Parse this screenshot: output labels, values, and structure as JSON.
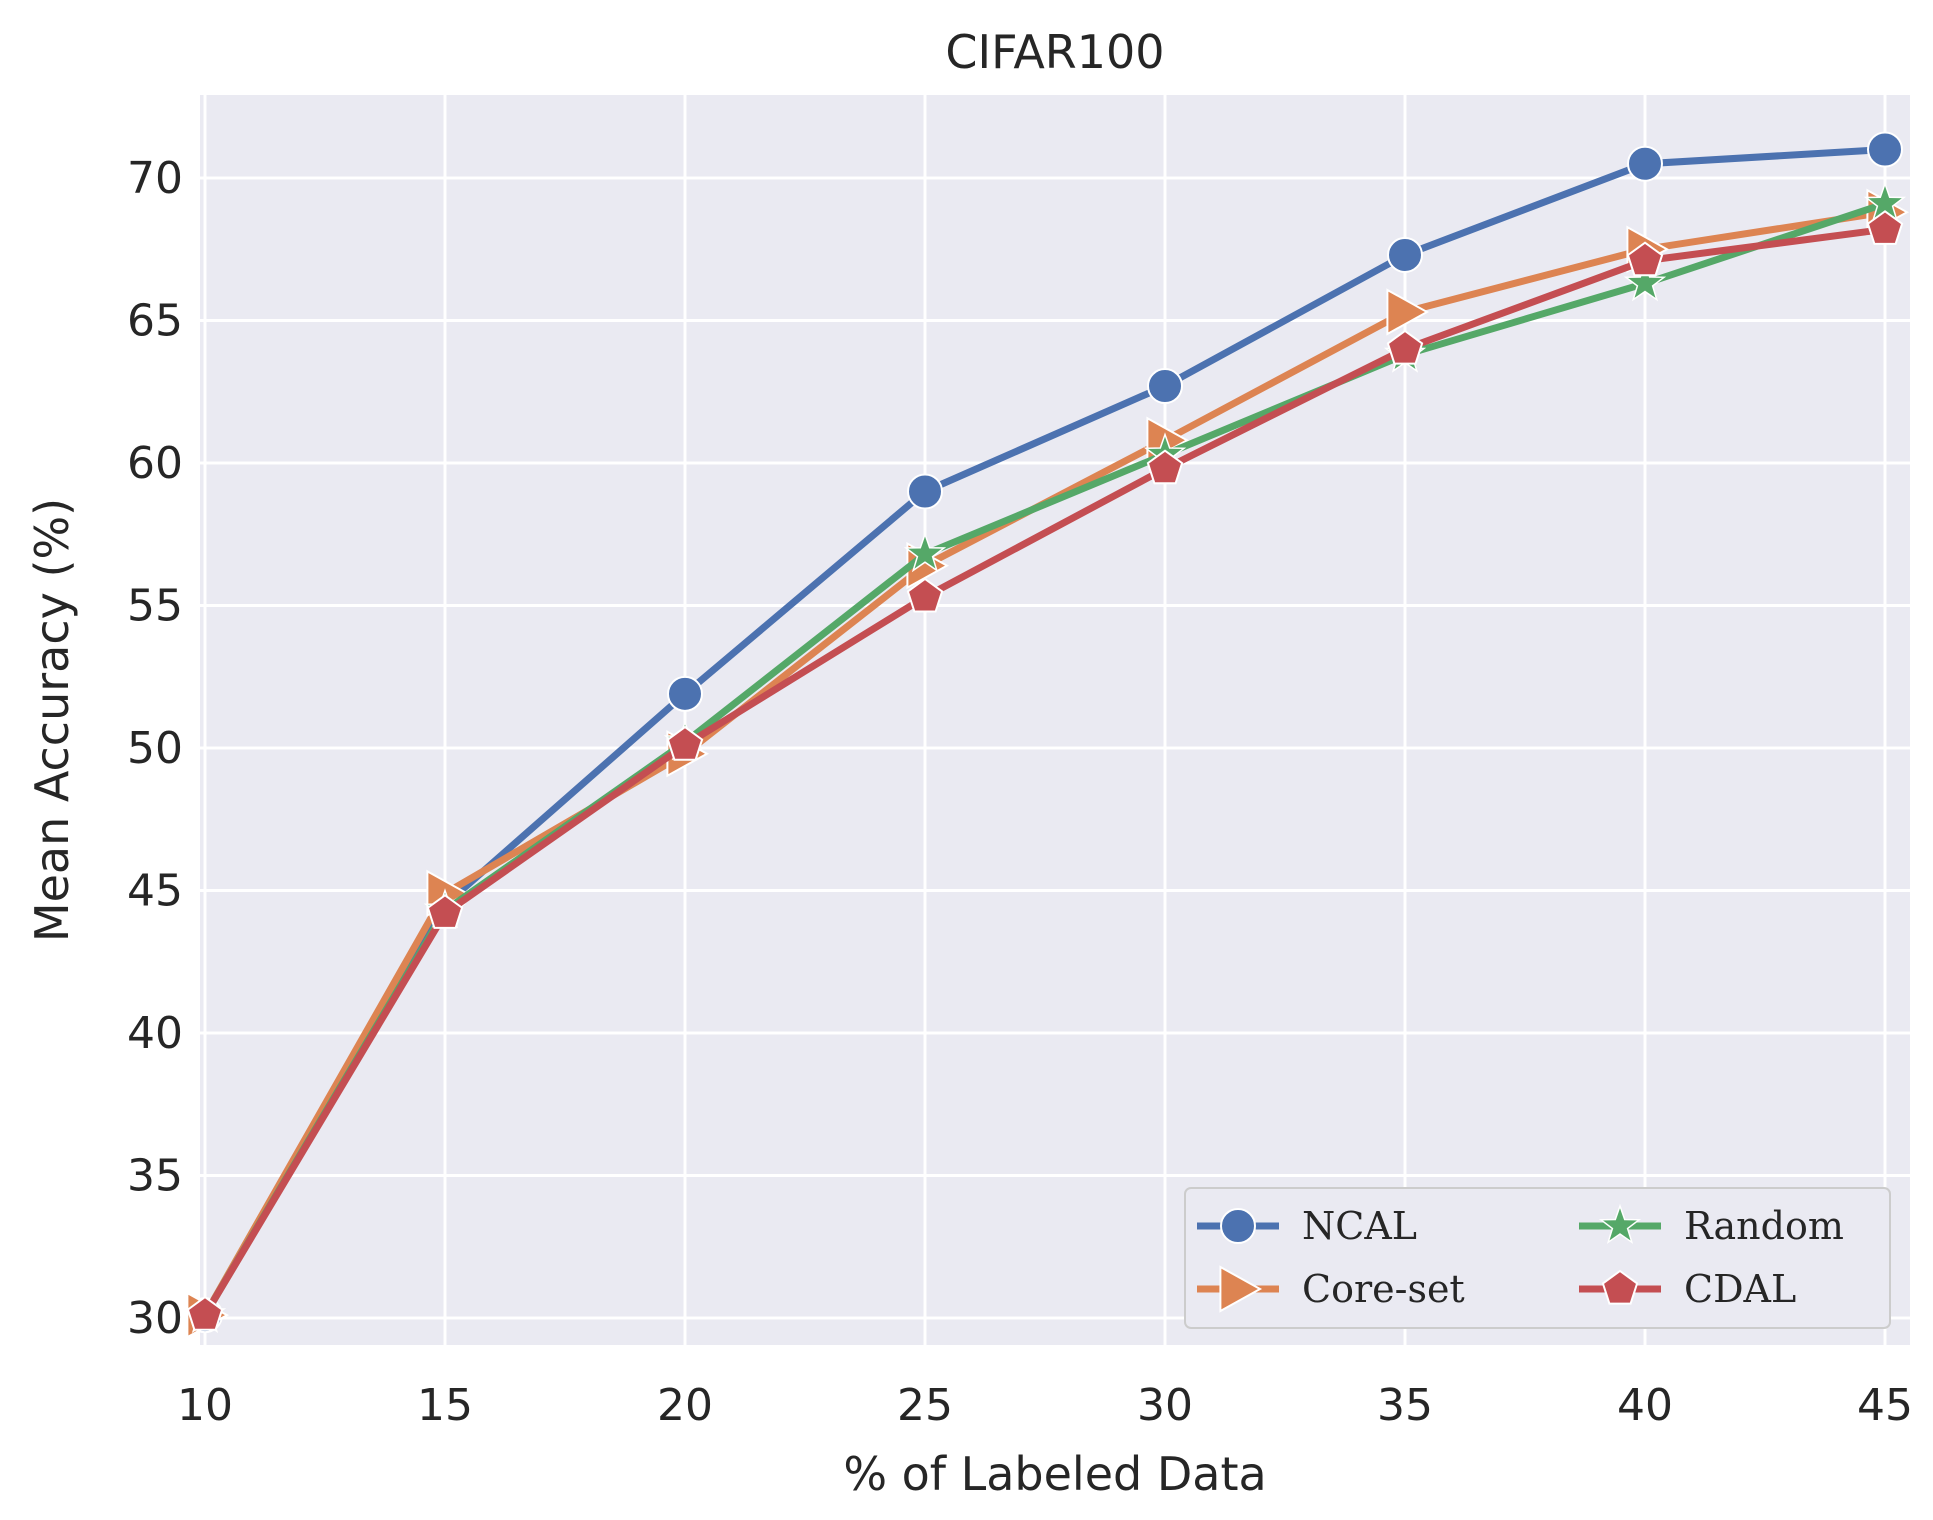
{
  "chart_data": {
    "type": "line",
    "title": "CIFAR100",
    "xlabel": "% of Labeled Data",
    "ylabel": "Mean Accuracy (%)",
    "x": [
      10,
      15,
      20,
      25,
      30,
      35,
      40,
      45
    ],
    "xlim": [
      10,
      45
    ],
    "ylim": [
      29,
      73
    ],
    "xticks": [
      10,
      15,
      20,
      25,
      30,
      35,
      40,
      45
    ],
    "yticks": [
      30,
      35,
      40,
      45,
      50,
      55,
      60,
      65,
      70
    ],
    "grid": true,
    "legend_position": "bottom-right",
    "legend_columns": 2,
    "series": [
      {
        "name": "NCAL",
        "color": "#4C72B0",
        "marker": "circle",
        "values": [
          30.1,
          44.5,
          51.9,
          59.0,
          62.7,
          67.3,
          70.5,
          71.0
        ]
      },
      {
        "name": "Core-set",
        "color": "#DD8452",
        "marker": "triangle-right",
        "values": [
          30.1,
          44.9,
          49.8,
          56.4,
          60.8,
          65.3,
          67.5,
          68.8
        ]
      },
      {
        "name": "Random",
        "color": "#55A868",
        "marker": "star",
        "values": [
          30.1,
          44.3,
          50.2,
          56.8,
          60.3,
          63.8,
          66.3,
          69.1
        ]
      },
      {
        "name": "CDAL",
        "color": "#C44E52",
        "marker": "pentagon",
        "values": [
          30.1,
          44.2,
          50.1,
          55.3,
          59.8,
          64.0,
          67.1,
          68.2
        ]
      }
    ]
  },
  "style": {
    "plot_background": "#EAEAF2",
    "grid_color": "#FFFFFF",
    "legend_background": "#EAEAF2",
    "legend_border": "#CCCCCC"
  }
}
